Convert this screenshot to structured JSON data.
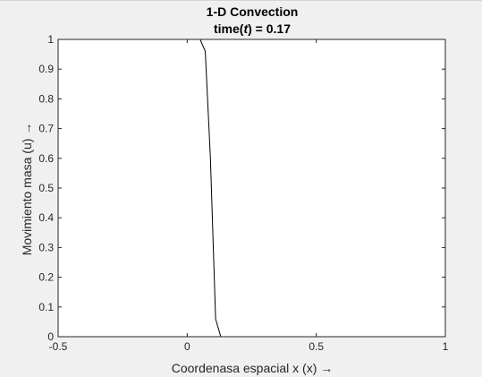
{
  "chart_data": {
    "type": "line",
    "title": "1-D Convection",
    "subtitle_prefix": "time(",
    "subtitle_var": "t",
    "subtitle_suffix": ") = 0.17",
    "xlabel": "Coordenasa espacial x (x) →",
    "ylabel": "Movimiento masa (u) →",
    "xlim": [
      -0.5,
      1
    ],
    "ylim": [
      0,
      1
    ],
    "xticks": [
      -0.5,
      0,
      0.5,
      1
    ],
    "xtick_labels": [
      "-0.5",
      "0",
      "0.5",
      "1"
    ],
    "yticks": [
      0,
      0.1,
      0.2,
      0.3,
      0.4,
      0.5,
      0.6,
      0.7,
      0.8,
      0.9,
      1
    ],
    "ytick_labels": [
      "0",
      "0.1",
      "0.2",
      "0.3",
      "0.4",
      "0.5",
      "0.6",
      "0.7",
      "0.8",
      "0.9",
      "1"
    ],
    "grid": false,
    "line_color": "#000000",
    "series": [
      {
        "x": [
          -0.5,
          0.0,
          0.05,
          0.07,
          0.09,
          0.11,
          0.13,
          1.0
        ],
        "y": [
          1,
          1,
          1,
          0.96,
          0.6,
          0.06,
          0,
          0
        ]
      }
    ]
  }
}
